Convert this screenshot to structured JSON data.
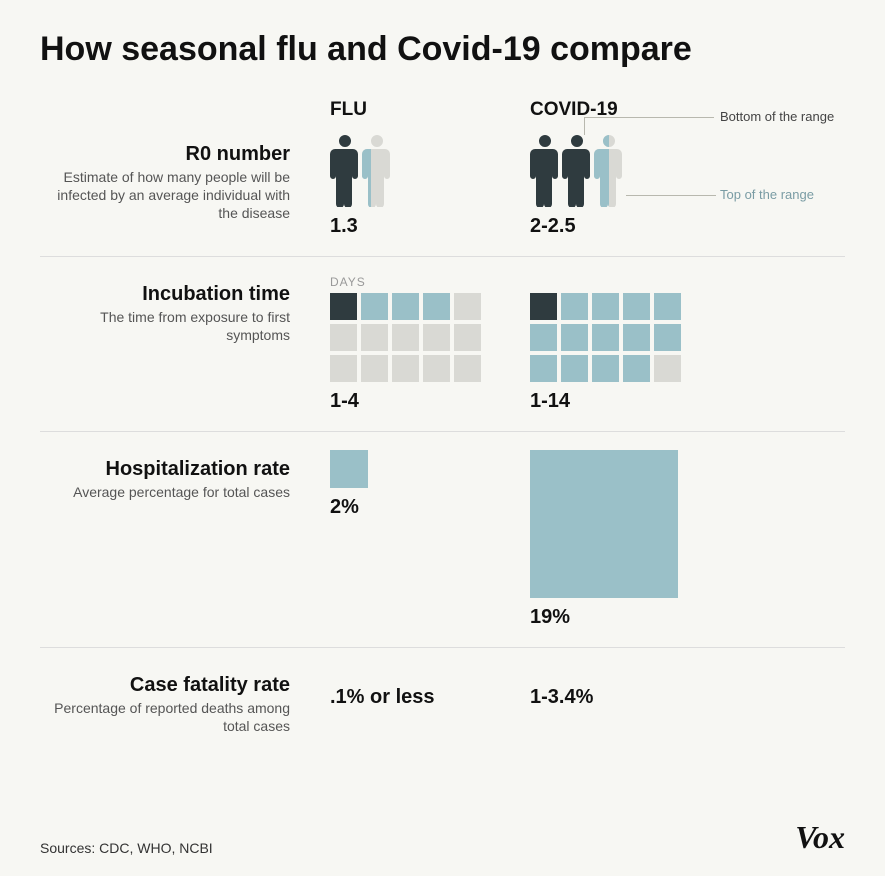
{
  "title": "How seasonal flu and Covid-19 compare",
  "columns": {
    "flu": "FLU",
    "covid": "COVID-19"
  },
  "colors": {
    "dark": "#2f3b3f",
    "mid": "#9ac0c8",
    "light": "#d9d9d4",
    "background": "#f7f7f3",
    "text": "#111111",
    "subtext": "#555555",
    "ann": "#7a8a8e"
  },
  "annotations": {
    "bottom": "Bottom of the range",
    "top": "Top of the range"
  },
  "rows": {
    "r0": {
      "title": "R0 number",
      "subtitle": "Estimate of how many people will be infected by an average individual with the disease",
      "flu": {
        "value": "1.3",
        "people": [
          {
            "color": "#2f3b3f",
            "frac": 1.0
          },
          {
            "color": "#9ac0c8",
            "frac": 0.3,
            "rest": "#d9d9d4"
          }
        ]
      },
      "covid": {
        "value": "2-2.5",
        "people": [
          {
            "color": "#2f3b3f",
            "frac": 1.0
          },
          {
            "color": "#2f3b3f",
            "frac": 1.0
          },
          {
            "color": "#9ac0c8",
            "frac": 0.5,
            "rest": "#d9d9d4"
          }
        ]
      }
    },
    "incubation": {
      "title": "Incubation time",
      "subtitle": "The time from exposure to first symptoms",
      "days_label": "DAYS",
      "grid_total": 15,
      "flu": {
        "value": "1-4",
        "squares": [
          "#2f3b3f",
          "#9ac0c8",
          "#9ac0c8",
          "#9ac0c8",
          "#d9d9d4",
          "#d9d9d4",
          "#d9d9d4",
          "#d9d9d4",
          "#d9d9d4",
          "#d9d9d4",
          "#d9d9d4",
          "#d9d9d4",
          "#d9d9d4",
          "#d9d9d4",
          "#d9d9d4"
        ]
      },
      "covid": {
        "value": "1-14",
        "squares": [
          "#2f3b3f",
          "#9ac0c8",
          "#9ac0c8",
          "#9ac0c8",
          "#9ac0c8",
          "#9ac0c8",
          "#9ac0c8",
          "#9ac0c8",
          "#9ac0c8",
          "#9ac0c8",
          "#9ac0c8",
          "#9ac0c8",
          "#9ac0c8",
          "#9ac0c8",
          "#d9d9d4"
        ]
      }
    },
    "hospitalization": {
      "title": "Hospitalization rate",
      "subtitle": "Average percentage for total cases",
      "color": "#9ac0c8",
      "flu": {
        "value": "2%",
        "size": 38
      },
      "covid": {
        "value": "19%",
        "size": 148
      }
    },
    "fatality": {
      "title": "Case fatality rate",
      "subtitle": "Percentage of reported deaths among total cases",
      "flu": {
        "value": ".1% or less"
      },
      "covid": {
        "value": "1-3.4%"
      }
    }
  },
  "sources": "Sources: CDC, WHO,  NCBI",
  "logo": "Vox"
}
